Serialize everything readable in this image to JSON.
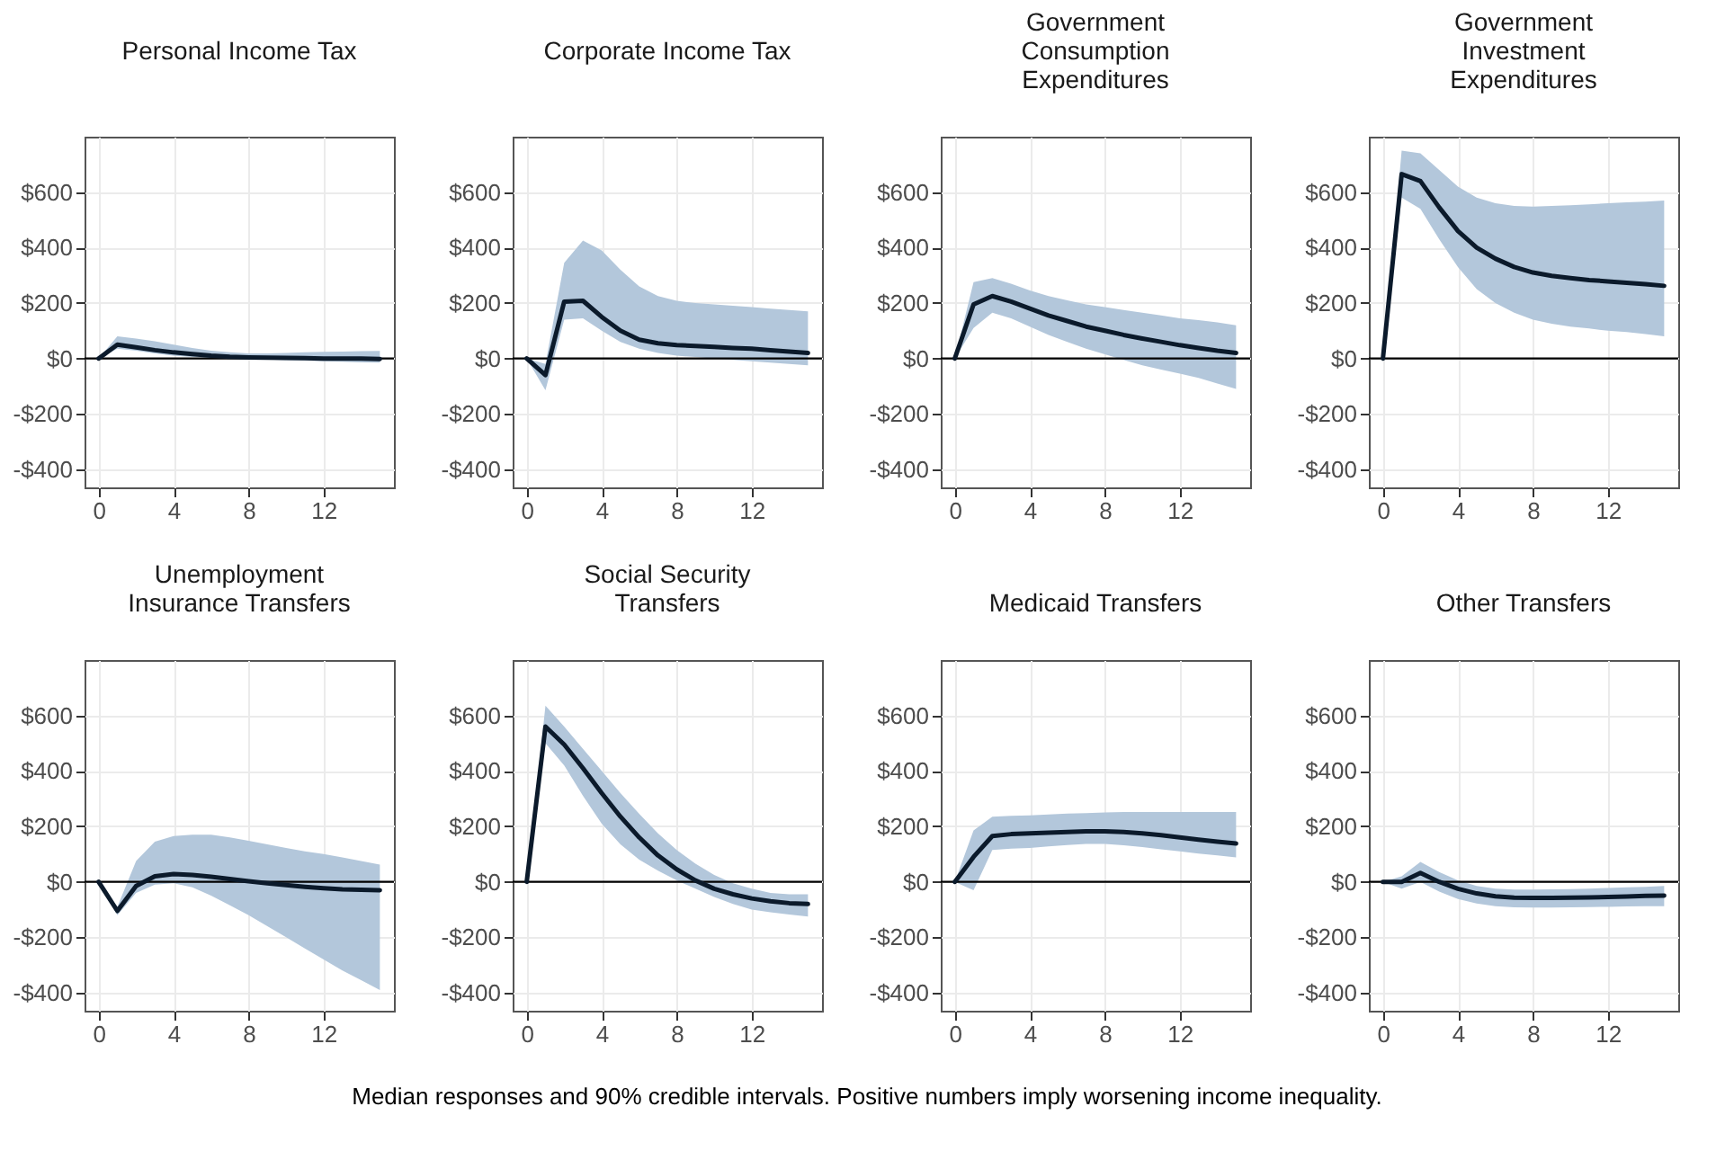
{
  "chart_data": [
    {
      "type": "line",
      "title": "Personal Income Tax",
      "x": [
        0,
        1,
        2,
        3,
        4,
        5,
        6,
        7,
        8,
        9,
        10,
        11,
        12,
        13,
        14,
        15
      ],
      "xlim": [
        -0.75,
        15.75
      ],
      "xticks": [
        0,
        4,
        8,
        12
      ],
      "ylim": [
        -465,
        800
      ],
      "yticks": [
        {
          "value": -400,
          "label": "-$400"
        },
        {
          "value": -200,
          "label": "-$200"
        },
        {
          "value": 0,
          "label": "$0"
        },
        {
          "value": 200,
          "label": "$200"
        },
        {
          "value": 400,
          "label": "$400"
        },
        {
          "value": 600,
          "label": "$600"
        }
      ],
      "grid": true,
      "ref_lines": [
        {
          "axis": "y",
          "value": 0,
          "color": "#000000"
        }
      ],
      "series": [
        {
          "color": "#0b1a2b",
          "values": [
            0,
            50,
            40,
            30,
            22,
            16,
            10,
            6,
            4,
            3,
            2,
            1,
            0,
            0,
            0,
            -2
          ],
          "lower": [
            0,
            35,
            28,
            18,
            10,
            5,
            2,
            0,
            -2,
            -4,
            -6,
            -8,
            -10,
            -12,
            -14,
            -15
          ],
          "upper": [
            0,
            80,
            72,
            62,
            50,
            38,
            28,
            22,
            18,
            18,
            20,
            22,
            24,
            25,
            26,
            27
          ]
        }
      ]
    },
    {
      "type": "line",
      "title": "Corporate Income Tax",
      "x": [
        0,
        1,
        2,
        3,
        4,
        5,
        6,
        7,
        8,
        9,
        10,
        11,
        12,
        13,
        14,
        15
      ],
      "xlim": [
        -0.75,
        15.75
      ],
      "xticks": [
        0,
        4,
        8,
        12
      ],
      "ylim": [
        -465,
        800
      ],
      "yticks": [
        {
          "value": -400,
          "label": "-$400"
        },
        {
          "value": -200,
          "label": "-$200"
        },
        {
          "value": 0,
          "label": "$0"
        },
        {
          "value": 200,
          "label": "$200"
        },
        {
          "value": 400,
          "label": "$400"
        },
        {
          "value": 600,
          "label": "$600"
        }
      ],
      "grid": true,
      "ref_lines": [
        {
          "axis": "y",
          "value": 0,
          "color": "#000000"
        }
      ],
      "series": [
        {
          "color": "#0b1a2b",
          "values": [
            0,
            -60,
            205,
            208,
            150,
            100,
            68,
            55,
            48,
            45,
            42,
            38,
            35,
            30,
            25,
            20
          ],
          "lower": [
            0,
            -115,
            140,
            145,
            100,
            60,
            35,
            20,
            10,
            5,
            0,
            -5,
            -10,
            -15,
            -20,
            -25
          ],
          "upper": [
            0,
            -20,
            345,
            425,
            390,
            320,
            260,
            225,
            208,
            200,
            195,
            190,
            185,
            180,
            175,
            170
          ]
        }
      ]
    },
    {
      "type": "line",
      "title": "Government Consumption Expenditures",
      "x": [
        0,
        1,
        2,
        3,
        4,
        5,
        6,
        7,
        8,
        9,
        10,
        11,
        12,
        13,
        14,
        15
      ],
      "xlim": [
        -0.75,
        15.75
      ],
      "xticks": [
        0,
        4,
        8,
        12
      ],
      "ylim": [
        -465,
        800
      ],
      "yticks": [
        {
          "value": -400,
          "label": "-$400"
        },
        {
          "value": -200,
          "label": "-$200"
        },
        {
          "value": 0,
          "label": "$0"
        },
        {
          "value": 200,
          "label": "$200"
        },
        {
          "value": 400,
          "label": "$400"
        },
        {
          "value": 600,
          "label": "$600"
        }
      ],
      "grid": true,
      "ref_lines": [
        {
          "axis": "y",
          "value": 0,
          "color": "#000000"
        }
      ],
      "series": [
        {
          "color": "#0b1a2b",
          "values": [
            0,
            195,
            225,
            205,
            180,
            155,
            135,
            115,
            100,
            85,
            72,
            60,
            48,
            38,
            28,
            20
          ],
          "lower": [
            0,
            110,
            165,
            145,
            115,
            85,
            60,
            35,
            15,
            -5,
            -25,
            -40,
            -55,
            -70,
            -90,
            -110
          ],
          "upper": [
            0,
            275,
            290,
            270,
            245,
            225,
            210,
            195,
            185,
            175,
            165,
            155,
            145,
            138,
            130,
            120
          ]
        }
      ]
    },
    {
      "type": "line",
      "title": "Government Investment Expenditures",
      "x": [
        0,
        1,
        2,
        3,
        4,
        5,
        6,
        7,
        8,
        9,
        10,
        11,
        12,
        13,
        14,
        15
      ],
      "xlim": [
        -0.75,
        15.75
      ],
      "xticks": [
        0,
        4,
        8,
        12
      ],
      "ylim": [
        -465,
        800
      ],
      "yticks": [
        {
          "value": -400,
          "label": "-$400"
        },
        {
          "value": -200,
          "label": "-$200"
        },
        {
          "value": 0,
          "label": "$0"
        },
        {
          "value": 200,
          "label": "$200"
        },
        {
          "value": 400,
          "label": "$400"
        },
        {
          "value": 600,
          "label": "$600"
        }
      ],
      "grid": true,
      "ref_lines": [
        {
          "axis": "y",
          "value": 0,
          "color": "#000000"
        }
      ],
      "series": [
        {
          "color": "#0b1a2b",
          "values": [
            0,
            665,
            640,
            545,
            460,
            400,
            360,
            330,
            310,
            298,
            290,
            283,
            278,
            273,
            268,
            262
          ],
          "lower": [
            0,
            580,
            540,
            430,
            330,
            250,
            200,
            165,
            140,
            125,
            115,
            108,
            100,
            95,
            88,
            80
          ],
          "upper": [
            0,
            750,
            740,
            680,
            620,
            580,
            560,
            550,
            548,
            550,
            553,
            556,
            560,
            563,
            566,
            570
          ]
        }
      ]
    },
    {
      "type": "line",
      "title": "Unemployment Insurance Transfers",
      "x": [
        0,
        1,
        2,
        3,
        4,
        5,
        6,
        7,
        8,
        9,
        10,
        11,
        12,
        13,
        14,
        15
      ],
      "xlim": [
        -0.75,
        15.75
      ],
      "xticks": [
        0,
        4,
        8,
        12
      ],
      "ylim": [
        -465,
        800
      ],
      "yticks": [
        {
          "value": -400,
          "label": "-$400"
        },
        {
          "value": -200,
          "label": "-$200"
        },
        {
          "value": 0,
          "label": "$0"
        },
        {
          "value": 200,
          "label": "$200"
        },
        {
          "value": 400,
          "label": "$400"
        },
        {
          "value": 600,
          "label": "$600"
        }
      ],
      "grid": true,
      "ref_lines": [
        {
          "axis": "y",
          "value": 0,
          "color": "#000000"
        }
      ],
      "series": [
        {
          "color": "#0b1a2b",
          "values": [
            0,
            -105,
            -15,
            20,
            28,
            25,
            18,
            10,
            2,
            -5,
            -12,
            -18,
            -23,
            -27,
            -29,
            -30
          ],
          "lower": [
            0,
            -120,
            -40,
            -10,
            -5,
            -20,
            -50,
            -85,
            -120,
            -160,
            -200,
            -240,
            -280,
            -320,
            -355,
            -390
          ],
          "upper": [
            0,
            -90,
            75,
            145,
            165,
            170,
            170,
            160,
            148,
            135,
            122,
            110,
            100,
            88,
            75,
            62
          ]
        }
      ]
    },
    {
      "type": "line",
      "title": "Social Security Transfers",
      "x": [
        0,
        1,
        2,
        3,
        4,
        5,
        6,
        7,
        8,
        9,
        10,
        11,
        12,
        13,
        14,
        15
      ],
      "xlim": [
        -0.75,
        15.75
      ],
      "xticks": [
        0,
        4,
        8,
        12
      ],
      "ylim": [
        -465,
        800
      ],
      "yticks": [
        {
          "value": -400,
          "label": "-$400"
        },
        {
          "value": -200,
          "label": "-$200"
        },
        {
          "value": 0,
          "label": "$0"
        },
        {
          "value": 200,
          "label": "$200"
        },
        {
          "value": 400,
          "label": "$400"
        },
        {
          "value": 600,
          "label": "$600"
        }
      ],
      "grid": true,
      "ref_lines": [
        {
          "axis": "y",
          "value": 0,
          "color": "#000000"
        }
      ],
      "series": [
        {
          "color": "#0b1a2b",
          "values": [
            0,
            560,
            495,
            410,
            320,
            235,
            160,
            95,
            45,
            5,
            -25,
            -45,
            -60,
            -70,
            -77,
            -80
          ],
          "lower": [
            0,
            500,
            420,
            310,
            210,
            135,
            80,
            40,
            5,
            -25,
            -55,
            -80,
            -100,
            -110,
            -118,
            -125
          ],
          "upper": [
            0,
            635,
            560,
            480,
            400,
            320,
            245,
            175,
            115,
            65,
            25,
            -5,
            -25,
            -40,
            -45,
            -45
          ]
        }
      ]
    },
    {
      "type": "line",
      "title": "Medicaid Transfers",
      "x": [
        0,
        1,
        2,
        3,
        4,
        5,
        6,
        7,
        8,
        9,
        10,
        11,
        12,
        13,
        14,
        15
      ],
      "xlim": [
        -0.75,
        15.75
      ],
      "xticks": [
        0,
        4,
        8,
        12
      ],
      "ylim": [
        -465,
        800
      ],
      "yticks": [
        {
          "value": -400,
          "label": "-$400"
        },
        {
          "value": -200,
          "label": "-$200"
        },
        {
          "value": 0,
          "label": "$0"
        },
        {
          "value": 200,
          "label": "$200"
        },
        {
          "value": 400,
          "label": "$400"
        },
        {
          "value": 600,
          "label": "$600"
        }
      ],
      "grid": true,
      "ref_lines": [
        {
          "axis": "y",
          "value": 0,
          "color": "#000000"
        }
      ],
      "series": [
        {
          "color": "#0b1a2b",
          "values": [
            0,
            90,
            165,
            172,
            175,
            177,
            180,
            182,
            182,
            180,
            175,
            168,
            160,
            152,
            145,
            138
          ],
          "lower": [
            0,
            -30,
            115,
            120,
            122,
            128,
            133,
            137,
            137,
            132,
            125,
            117,
            110,
            102,
            95,
            88
          ],
          "upper": [
            0,
            185,
            235,
            238,
            240,
            243,
            246,
            248,
            250,
            252,
            252,
            252,
            252,
            252,
            252,
            252
          ]
        }
      ]
    },
    {
      "type": "line",
      "title": "Other Transfers",
      "x": [
        0,
        1,
        2,
        3,
        4,
        5,
        6,
        7,
        8,
        9,
        10,
        11,
        12,
        13,
        14,
        15
      ],
      "xlim": [
        -0.75,
        15.75
      ],
      "xticks": [
        0,
        4,
        8,
        12
      ],
      "ylim": [
        -465,
        800
      ],
      "yticks": [
        {
          "value": -400,
          "label": "-$400"
        },
        {
          "value": -200,
          "label": "-$200"
        },
        {
          "value": 0,
          "label": "$0"
        },
        {
          "value": 200,
          "label": "$200"
        },
        {
          "value": 400,
          "label": "$400"
        },
        {
          "value": 600,
          "label": "$600"
        }
      ],
      "grid": true,
      "ref_lines": [
        {
          "axis": "y",
          "value": 0,
          "color": "#000000"
        }
      ],
      "annotations": [
        "Median responses and 90% credible intervals. Positive numbers imply worsening income inequality."
      ],
      "series": [
        {
          "color": "#0b1a2b",
          "values": [
            0,
            0,
            32,
            0,
            -25,
            -42,
            -52,
            -57,
            -58,
            -58,
            -57,
            -56,
            -55,
            -53,
            -51,
            -50
          ],
          "lower": [
            0,
            -25,
            0,
            -35,
            -62,
            -78,
            -88,
            -92,
            -93,
            -93,
            -92,
            -91,
            -90,
            -89,
            -88,
            -88
          ],
          "upper": [
            0,
            20,
            72,
            35,
            5,
            -15,
            -25,
            -28,
            -28,
            -27,
            -26,
            -25,
            -22,
            -20,
            -18,
            -15
          ]
        }
      ]
    }
  ]
}
